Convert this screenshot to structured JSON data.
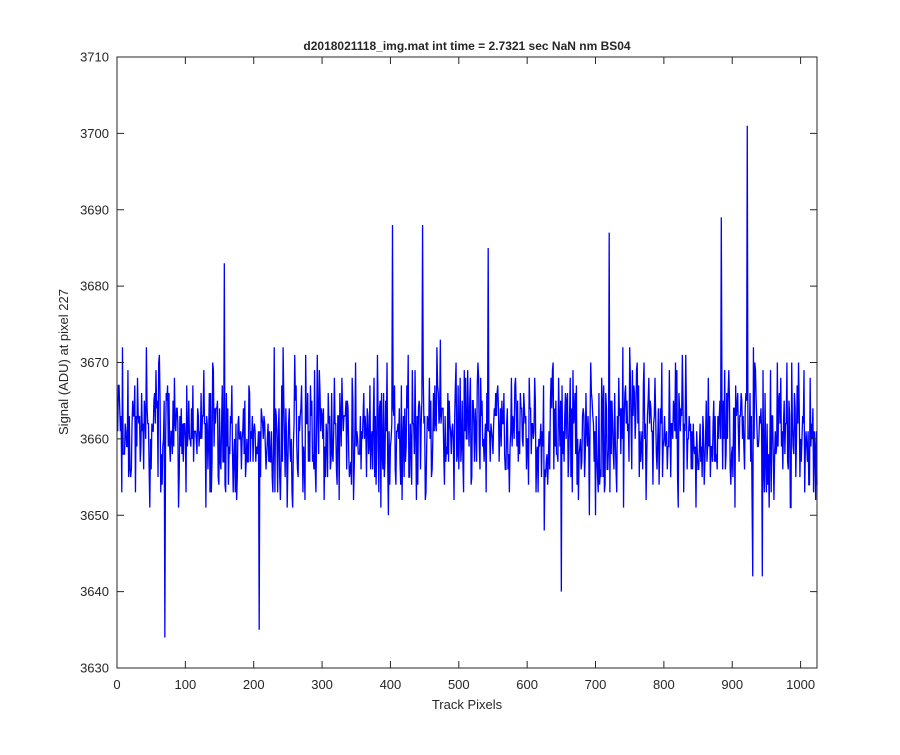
{
  "chart_data": {
    "type": "line",
    "title": "d2018021118_img.mat int time = 2.7321 sec  NaN nm BS04",
    "xlabel": "Track Pixels",
    "ylabel": "Signal (ADU) at pixel 227",
    "xlim": [
      0,
      1024
    ],
    "ylim": [
      3630,
      3710
    ],
    "xticks": [
      0,
      100,
      200,
      300,
      400,
      500,
      600,
      700,
      800,
      900,
      1000
    ],
    "yticks": [
      3630,
      3640,
      3650,
      3660,
      3670,
      3680,
      3690,
      3700,
      3710
    ],
    "grid": false,
    "line_color": "#0000ff",
    "series": [
      {
        "x_start": 1,
        "x_step": 1,
        "count": 1024,
        "mean": 3661,
        "noise_amplitude": 7,
        "notable_points": [
          {
            "x": 70,
            "y": 3634
          },
          {
            "x": 208,
            "y": 3635
          },
          {
            "x": 650,
            "y": 3640
          },
          {
            "x": 157,
            "y": 3683
          },
          {
            "x": 403,
            "y": 3688
          },
          {
            "x": 447,
            "y": 3688
          },
          {
            "x": 543,
            "y": 3685
          },
          {
            "x": 720,
            "y": 3687
          },
          {
            "x": 884,
            "y": 3689
          },
          {
            "x": 922,
            "y": 3701
          },
          {
            "x": 930,
            "y": 3642
          },
          {
            "x": 944,
            "y": 3642
          }
        ]
      }
    ]
  }
}
